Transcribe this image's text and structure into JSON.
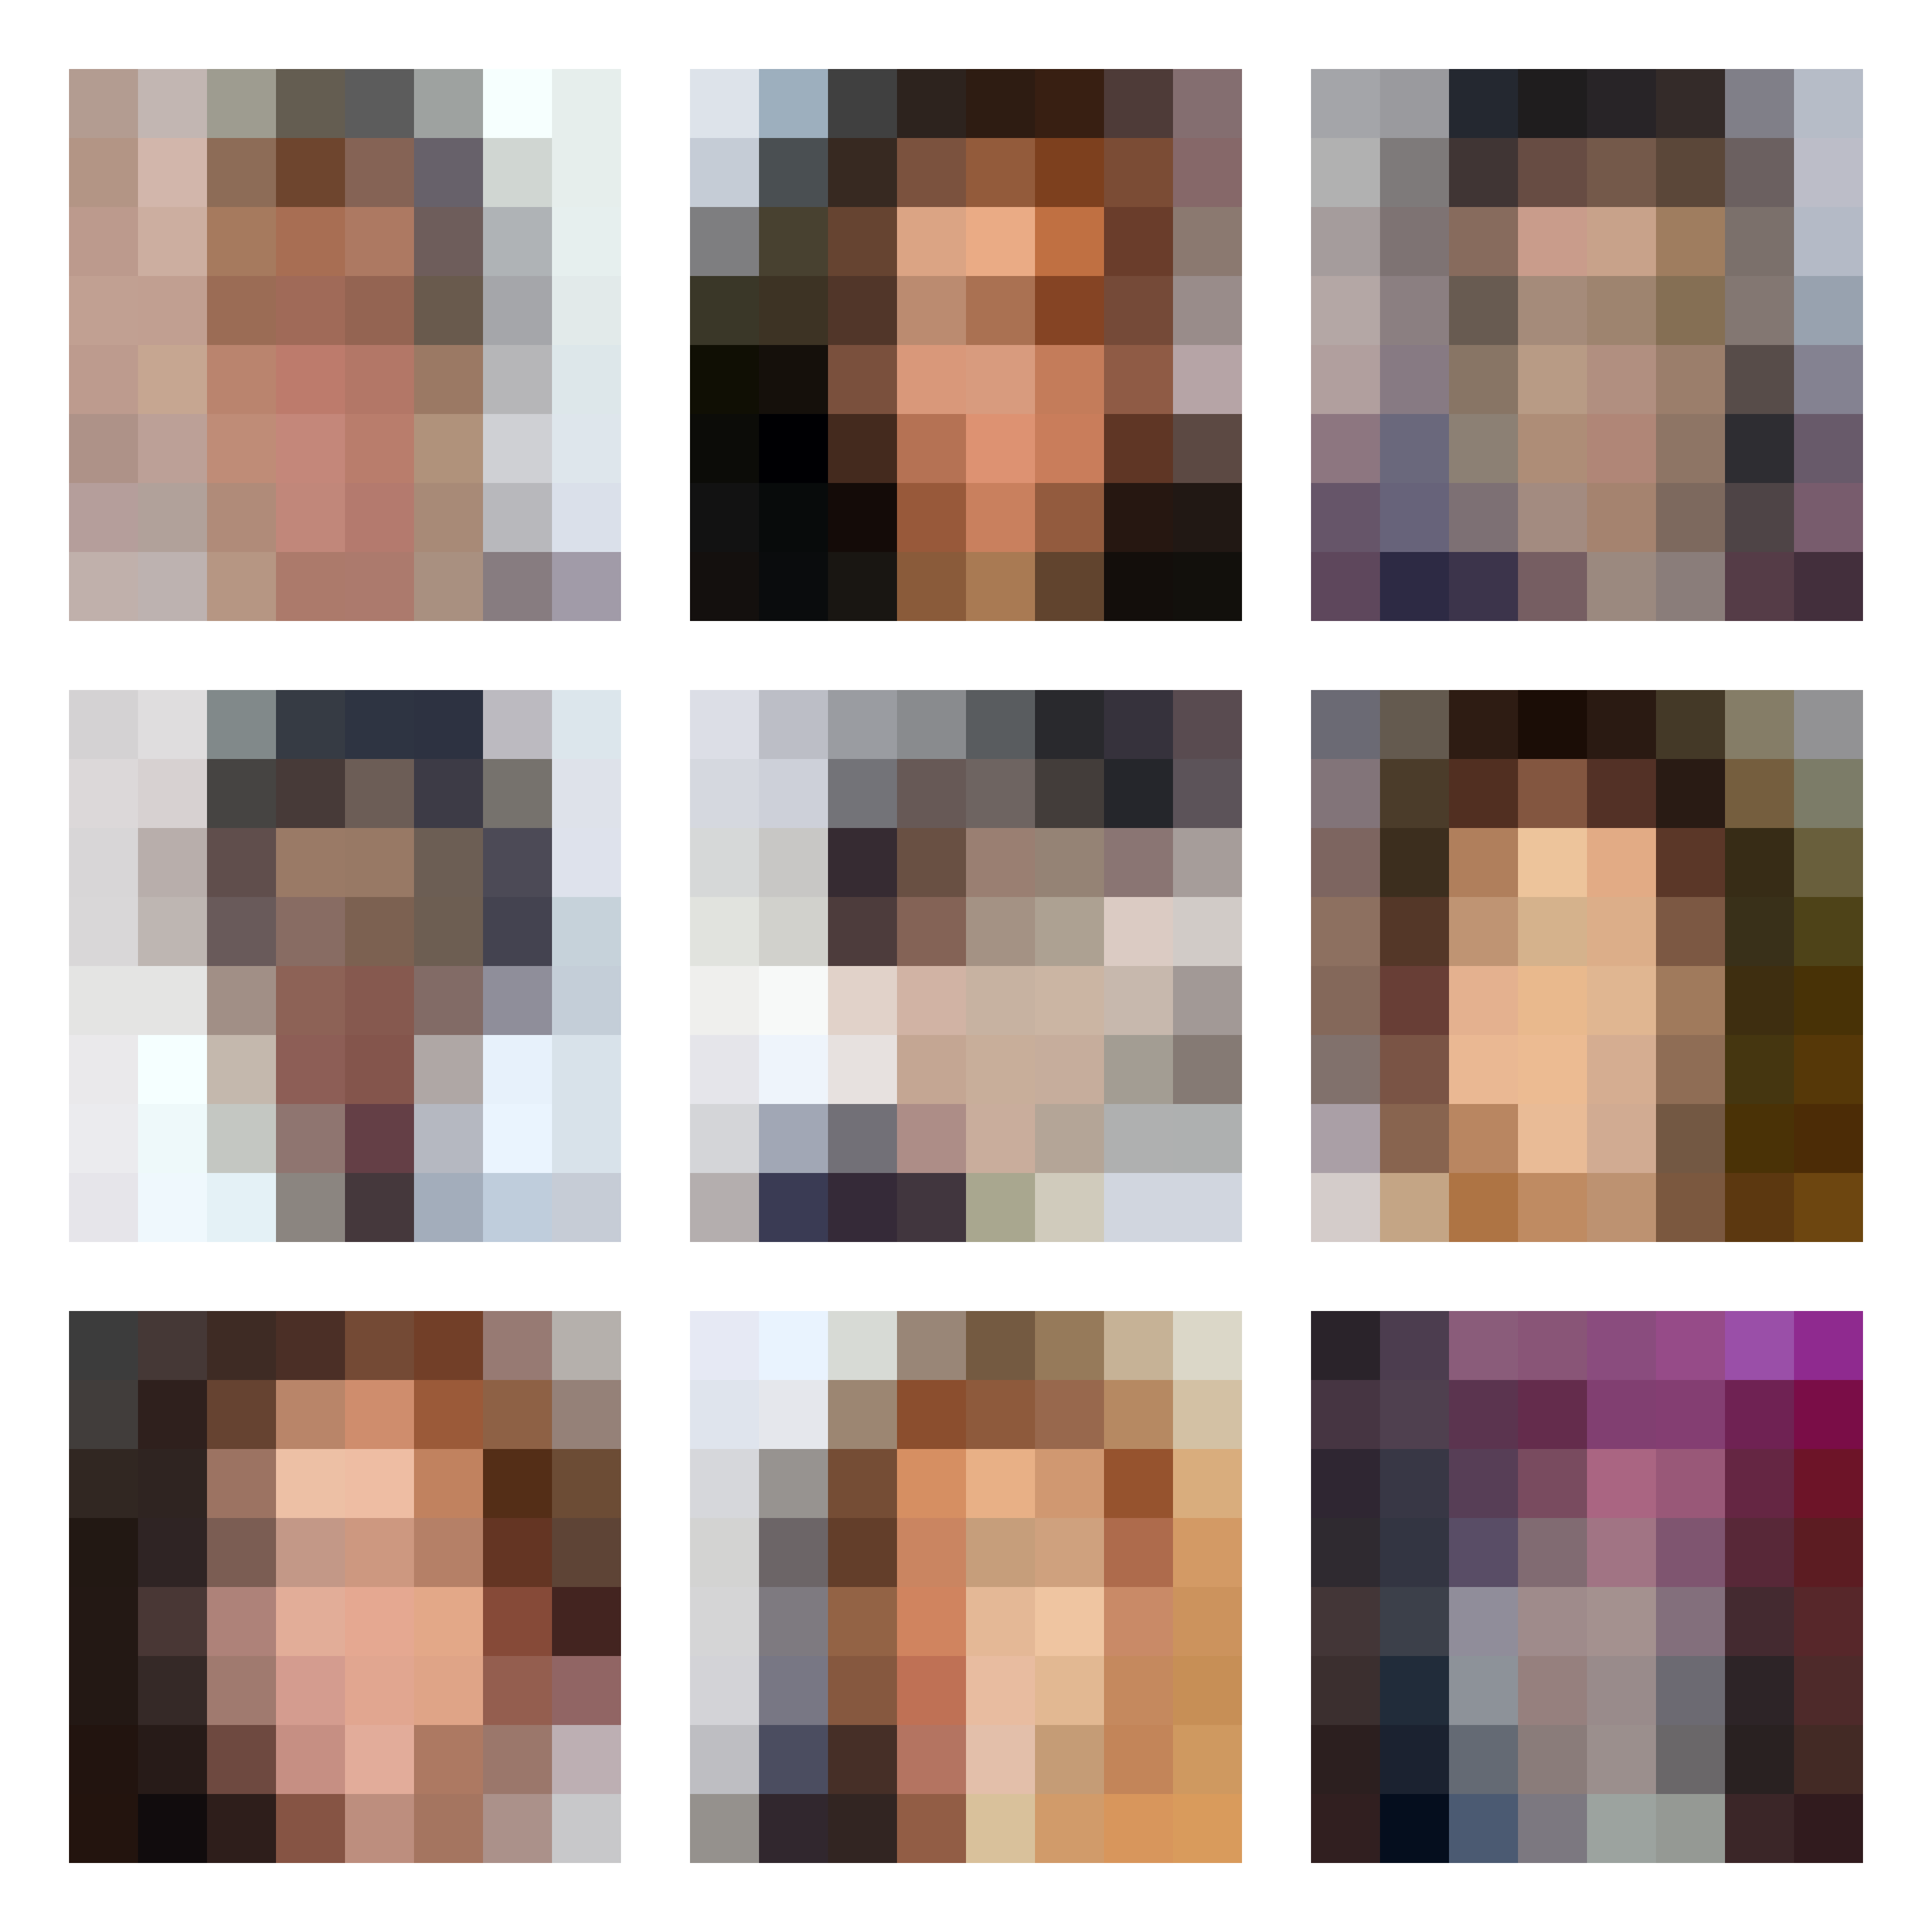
{
  "tiles": [
    {
      "name": "tile-1",
      "pixels": [
        [
          "#b39c91",
          "#c2b6b2",
          "#9e9c90",
          "#645d51",
          "#5c5c5c",
          "#9ea2a0",
          "#f6fffe",
          "#e6eeec"
        ],
        [
          "#b39585",
          "#d2b6ab",
          "#8d6c57",
          "#6e452e",
          "#856355",
          "#67616a",
          "#d0d6d2",
          "#e6eeec"
        ],
        [
          "#bc9a8d",
          "#ccaea0",
          "#a67a5e",
          "#a86e53",
          "#ad7962",
          "#6e5d5b",
          "#afb3b6",
          "#e6efee"
        ],
        [
          "#c1a092",
          "#c19f91",
          "#9b6c55",
          "#a06a58",
          "#946452",
          "#695a4d",
          "#a5a6aa",
          "#e2eaea"
        ],
        [
          "#bd9b8e",
          "#c6a691",
          "#ba846e",
          "#bd7b6c",
          "#b37767",
          "#9b7964",
          "#b6b6b8",
          "#dde7ea"
        ],
        [
          "#ae9288",
          "#bca097",
          "#bf8c77",
          "#c4877a",
          "#b97d6c",
          "#b0927b",
          "#cfd0d4",
          "#dee6ec"
        ],
        [
          "#b59e9b",
          "#b1a19a",
          "#b08b79",
          "#c1877a",
          "#b47a6e",
          "#a88a77",
          "#b8b8bc",
          "#dae0ea"
        ],
        [
          "#c0b0ab",
          "#bdb2b0",
          "#b69683",
          "#ac7a6b",
          "#ac7a6d",
          "#a99080",
          "#877c80",
          "#a19ba8"
        ]
      ]
    },
    {
      "name": "tile-2",
      "pixels": [
        [
          "#dde3ea",
          "#9dafbe",
          "#404040",
          "#2d231e",
          "#2e1c12",
          "#381f12",
          "#4e3b38",
          "#846e70"
        ],
        [
          "#c5ccd6",
          "#4a4f52",
          "#372921",
          "#7b523e",
          "#935b3b",
          "#7d401e",
          "#7b4c35",
          "#866869"
        ],
        [
          "#7e7e80",
          "#484130",
          "#664431",
          "#dba484",
          "#eaab85",
          "#c07042",
          "#6a3d2b",
          "#8b7970"
        ],
        [
          "#3a3728",
          "#3d3324",
          "#513629",
          "#bb8b70",
          "#aa7152",
          "#854424",
          "#754a38",
          "#998c8a"
        ],
        [
          "#100f04",
          "#15100b",
          "#7a503d",
          "#d9987a",
          "#d89b7e",
          "#c47c5a",
          "#8f5b45",
          "#b6a4a6"
        ],
        [
          "#0c0c08",
          "#000003",
          "#442a1e",
          "#b57254",
          "#dd9272",
          "#c97d5b",
          "#5f3625",
          "#5c4943"
        ],
        [
          "#121212",
          "#080b0b",
          "#140b08",
          "#98593a",
          "#c9805e",
          "#935b3e",
          "#261711",
          "#211814"
        ],
        [
          "#14100e",
          "#0a0c0d",
          "#191612",
          "#8a5b3a",
          "#a97a53",
          "#61442e",
          "#130e0b",
          "#12100c"
        ]
      ]
    },
    {
      "name": "tile-3",
      "pixels": [
        [
          "#a4a5a9",
          "#9a9a9e",
          "#242830",
          "#1f1d1e",
          "#282427",
          "#342b29",
          "#807f88",
          "#b6bcc7"
        ],
        [
          "#b1b1b1",
          "#7e7a7a",
          "#403534",
          "#674c43",
          "#74594a",
          "#5b4739",
          "#6b6060",
          "#bcbdc8"
        ],
        [
          "#a59c9c",
          "#7e7373",
          "#876b5d",
          "#c99c8b",
          "#c8a28a",
          "#9f7d5f",
          "#7b706b",
          "#b4bac6"
        ],
        [
          "#b4a7a5",
          "#8b7f81",
          "#685b51",
          "#a58b7a",
          "#9e846f",
          "#856f54",
          "#837772",
          "#98a2af"
        ],
        [
          "#b19f9e",
          "#877a83",
          "#887565",
          "#b89b85",
          "#b18f80",
          "#9b7e6b",
          "#574c49",
          "#848291"
        ],
        [
          "#8d7680",
          "#6a687c",
          "#8c8074",
          "#ae8d77",
          "#b08677",
          "#8e7565",
          "#2e2d32",
          "#685a6a"
        ],
        [
          "#665569",
          "#67637a",
          "#7d7074",
          "#a38b80",
          "#a5836f",
          "#7d695e",
          "#4e4446",
          "#785c6d"
        ],
        [
          "#5e475c",
          "#2d2a44",
          "#3c344b",
          "#765e62",
          "#9b897f",
          "#8a7d7a",
          "#553c47",
          "#432f3c"
        ]
      ]
    },
    {
      "name": "tile-4",
      "pixels": [
        [
          "#d4d2d3",
          "#dfddde",
          "#81898a",
          "#363b44",
          "#2e3442",
          "#2d3241",
          "#bcbac0",
          "#dce6ec"
        ],
        [
          "#dcd8d9",
          "#d7d1d1",
          "#464442",
          "#473a38",
          "#6c5d56",
          "#3d3b46",
          "#76726d",
          "#dee2ea"
        ],
        [
          "#d8d6d7",
          "#b8aeab",
          "#604e4c",
          "#9a7a66",
          "#987965",
          "#6c5e54",
          "#4c4a56",
          "#dee2ec"
        ],
        [
          "#d9d7d8",
          "#beb6b2",
          "#695a5a",
          "#886c63",
          "#7c6151",
          "#6d5e52",
          "#444350",
          "#c6d2da"
        ],
        [
          "#e4e4e3",
          "#e4e4e3",
          "#a18f86",
          "#8d6256",
          "#86594f",
          "#826b66",
          "#8f8e9a",
          "#c4ced8"
        ],
        [
          "#eae9eb",
          "#f5ffff",
          "#c4b8ad",
          "#8d5e56",
          "#84554c",
          "#afa7a5",
          "#e7f1fb",
          "#d8e2ea"
        ],
        [
          "#ebebee",
          "#eef9fa",
          "#c4c7c2",
          "#8f7570",
          "#643f46",
          "#b5b8c1",
          "#eaf4fe",
          "#d8e2ea"
        ],
        [
          "#e6e5ea",
          "#eff8fd",
          "#e4f1f6",
          "#8b8580",
          "#45383c",
          "#a3adbb",
          "#bfcddc",
          "#c6ccd6"
        ]
      ]
    },
    {
      "name": "tile-5",
      "pixels": [
        [
          "#dcdee6",
          "#bcbec6",
          "#9a9ca1",
          "#898b8e",
          "#595c5f",
          "#29292d",
          "#36323c",
          "#594b50"
        ],
        [
          "#d5d8df",
          "#cdd0d9",
          "#737378",
          "#675956",
          "#6e6461",
          "#433d3a",
          "#25262b",
          "#5c5359"
        ],
        [
          "#d6d8d8",
          "#c8c7c5",
          "#362b32",
          "#695043",
          "#9a7f72",
          "#958375",
          "#8a7573",
          "#a69d9a"
        ],
        [
          "#e1e3de",
          "#d1d1cc",
          "#4d3c3c",
          "#846356",
          "#a49284",
          "#ada192",
          "#dbcbc3",
          "#d1cbc7"
        ],
        [
          "#efefed",
          "#f7f9f8",
          "#e1d2c9",
          "#d1b3a4",
          "#c7b2a1",
          "#cbb5a3",
          "#c7b8ad",
          "#a29996"
        ],
        [
          "#e5e5ea",
          "#eef4fb",
          "#e7e1df",
          "#c4a693",
          "#c8ae9a",
          "#c6ad9c",
          "#a39d93",
          "#857a74"
        ],
        [
          "#d4d5d8",
          "#a1a7b5",
          "#727077",
          "#ad8d87",
          "#c9ad9c",
          "#b4a597",
          "#afb0b0",
          "#aeb0b0"
        ],
        [
          "#b4aeae",
          "#3a3b54",
          "#352a38",
          "#41363e",
          "#a9a78f",
          "#d0cbbc",
          "#d1d6df",
          "#d1d6df"
        ]
      ]
    },
    {
      "name": "tile-6",
      "pixels": [
        [
          "#6b6a74",
          "#645a4f",
          "#2e1c13",
          "#1b0d06",
          "#2a1a12",
          "#443927",
          "#857d67",
          "#929294"
        ],
        [
          "#827479",
          "#4b3c2a",
          "#512f21",
          "#835640",
          "#533126",
          "#291b14",
          "#755e3e",
          "#7c7c68"
        ],
        [
          "#7d6560",
          "#3c2e1e",
          "#b07f5c",
          "#edc49b",
          "#e2ab85",
          "#5b3728",
          "#372c16",
          "#695f3c"
        ],
        [
          "#8d7060",
          "#543728",
          "#bf9473",
          "#d5b28c",
          "#dcae89",
          "#7c5843",
          "#393019",
          "#4e4318"
        ],
        [
          "#84685a",
          "#683e36",
          "#e4b18f",
          "#e9b98d",
          "#e0b691",
          "#a07a5c",
          "#3e2e10",
          "#483206"
        ],
        [
          "#81716c",
          "#7a5445",
          "#eab893",
          "#ecbb92",
          "#d5ad91",
          "#8f6d55",
          "#453610",
          "#563808"
        ],
        [
          "#aa9fa6",
          "#88644f",
          "#b98661",
          "#e9bb96",
          "#d1ab92",
          "#735843",
          "#4a3206",
          "#4c2c06"
        ],
        [
          "#d4ccca",
          "#c4a585",
          "#ae7444",
          "#bf8b62",
          "#bd9271",
          "#7b583f",
          "#5c3810",
          "#6d4610"
        ]
      ]
    },
    {
      "name": "tile-7",
      "pixels": [
        [
          "#3c3c3c",
          "#453836",
          "#3e2b24",
          "#4b2f26",
          "#744a35",
          "#723f28",
          "#977a73",
          "#b5b0ac"
        ],
        [
          "#413d3b",
          "#2f201d",
          "#664331",
          "#b98569",
          "#cf8d6d",
          "#9b5a39",
          "#8e6145",
          "#958178"
        ],
        [
          "#312722",
          "#2f2421",
          "#9c7362",
          "#edc0a5",
          "#eebda3",
          "#c1825f",
          "#542e17",
          "#6c4c35"
        ],
        [
          "#221813",
          "#2f2424",
          "#7b5d53",
          "#c39887",
          "#cd9880",
          "#b58067",
          "#643523",
          "#5e4436"
        ],
        [
          "#231814",
          "#493735",
          "#ae8279",
          "#e2ad98",
          "#e5a891",
          "#e3a888",
          "#864a38",
          "#432420"
        ],
        [
          "#231814",
          "#352927",
          "#a07a6f",
          "#d49c8f",
          "#e1a690",
          "#dfa487",
          "#945e4f",
          "#916564"
        ],
        [
          "#22140f",
          "#271b18",
          "#6e4940",
          "#c68f83",
          "#e2ac9a",
          "#ad7962",
          "#9b776b",
          "#bdafb3"
        ],
        [
          "#23140e",
          "#110c0d",
          "#2e1e1b",
          "#865444",
          "#bd8e7e",
          "#a57560",
          "#ab918a",
          "#c8c8ca"
        ]
      ]
    },
    {
      "name": "tile-8",
      "pixels": [
        [
          "#e6e9f4",
          "#e9f3fe",
          "#d7dad5",
          "#998677",
          "#745a41",
          "#967a5a",
          "#c6b296",
          "#dbd7c8"
        ],
        [
          "#dfe4ed",
          "#e5e7ec",
          "#9c8672",
          "#8b4e2e",
          "#8e5a3c",
          "#98684d",
          "#b68962",
          "#d3c1a4"
        ],
        [
          "#d6d7db",
          "#979390",
          "#754d35",
          "#d68f62",
          "#e8b086",
          "#d09871",
          "#96532e",
          "#d9ad7d"
        ],
        [
          "#d3d3d2",
          "#6c6567",
          "#633e2a",
          "#ca8561",
          "#c69e7b",
          "#cfa17e",
          "#ae6b4c",
          "#d39a65"
        ],
        [
          "#d5d5d6",
          "#7e7a80",
          "#936345",
          "#d0845f",
          "#e4b896",
          "#efc5a1",
          "#c98a67",
          "#cc935d"
        ],
        [
          "#d3d3d7",
          "#787784",
          "#86583f",
          "#bf7155",
          "#e8bca0",
          "#e2b892",
          "#c5895e",
          "#c78f56"
        ],
        [
          "#bebec2",
          "#4b4d60",
          "#462f27",
          "#b47461",
          "#e3bfaa",
          "#c59c76",
          "#c38559",
          "#cf9960"
        ],
        [
          "#95918d",
          "#31272e",
          "#322522",
          "#925d45",
          "#d9c19b",
          "#d19b6a",
          "#d8965c",
          "#d99b5c"
        ]
      ]
    },
    {
      "name": "tile-9",
      "pixels": [
        [
          "#2a232a",
          "#4c3d4f",
          "#8a5c7a",
          "#895577",
          "#8a4c7e",
          "#964b88",
          "#9a4fa8",
          "#8f2a8f"
        ],
        [
          "#463542",
          "#4f404f",
          "#5b344f",
          "#642c4c",
          "#813f71",
          "#843e72",
          "#6f2253",
          "#7a0d47"
        ],
        [
          "#2f2632",
          "#383745",
          "#573e56",
          "#794b5f",
          "#aa6582",
          "#995878",
          "#652643",
          "#6d1428"
        ],
        [
          "#2f2a30",
          "#333542",
          "#594d66",
          "#816b72",
          "#a17484",
          "#7f5570",
          "#582838",
          "#5c1c22"
        ],
        [
          "#433637",
          "#3c404a",
          "#908d9a",
          "#9f8b8b",
          "#a4918f",
          "#836f7c",
          "#442a30",
          "#57272a"
        ],
        [
          "#3b2f2f",
          "#212c3a",
          "#8d9299",
          "#96807e",
          "#998b8b",
          "#6c6a72",
          "#2d2427",
          "#4e2a2a"
        ],
        [
          "#2c1f1f",
          "#1b2230",
          "#646a74",
          "#8a7c7a",
          "#9b8f8d",
          "#6a6769",
          "#292121",
          "#432a25"
        ],
        [
          "#311f20",
          "#050e1e",
          "#4b5a72",
          "#7c7880",
          "#9ca39f",
          "#959994",
          "#3b2628",
          "#311b1e"
        ]
      ]
    }
  ]
}
